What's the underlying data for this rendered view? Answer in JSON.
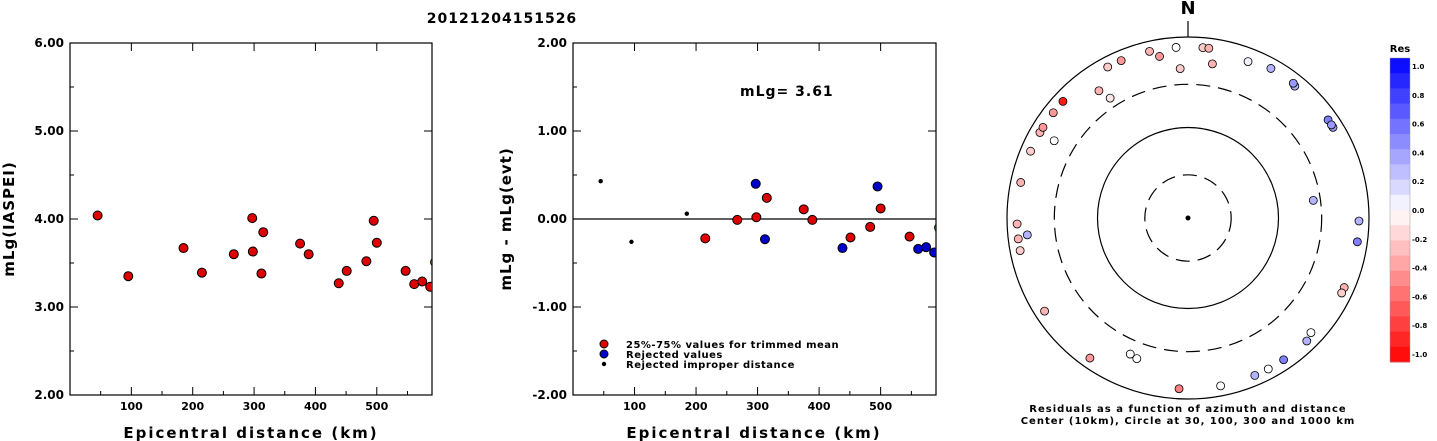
{
  "title": "20121204151526",
  "chart_data": [
    {
      "type": "scatter",
      "xlabel": "Epicentral distance (km)",
      "ylabel": "mLg(IASPEI)",
      "xlim": [
        0,
        590
      ],
      "ylim": [
        2.0,
        6.0
      ],
      "x_ticks": [
        "100",
        "200",
        "300",
        "400",
        "500"
      ],
      "y_ticks": [
        "2.00",
        "3.00",
        "4.00",
        "5.00",
        "6.00"
      ],
      "color": "#dd0000",
      "points": [
        [
          45,
          4.04
        ],
        [
          95,
          3.35
        ],
        [
          185,
          3.67
        ],
        [
          215,
          3.39
        ],
        [
          267,
          3.6
        ],
        [
          297,
          4.01
        ],
        [
          298,
          3.63
        ],
        [
          312,
          3.38
        ],
        [
          315,
          3.85
        ],
        [
          375,
          3.72
        ],
        [
          389,
          3.6
        ],
        [
          438,
          3.27
        ],
        [
          451,
          3.41
        ],
        [
          483,
          3.52
        ],
        [
          495,
          3.98
        ],
        [
          500,
          3.73
        ],
        [
          547,
          3.41
        ],
        [
          561,
          3.26
        ],
        [
          574,
          3.29
        ],
        [
          587,
          3.23
        ],
        [
          595,
          3.51
        ]
      ]
    },
    {
      "type": "scatter",
      "xlabel": "Epicentral distance (km)",
      "ylabel": "mLg - mLg(evt)",
      "xlim": [
        0,
        590
      ],
      "ylim": [
        -2.0,
        2.0
      ],
      "x_ticks": [
        "100",
        "200",
        "300",
        "400",
        "500"
      ],
      "y_ticks": [
        "-2.00",
        "-1.00",
        "0.00",
        "1.00",
        "2.00"
      ],
      "annotation": "mLg= 3.61",
      "reference_line": 0.0,
      "series": [
        {
          "name": "25%-75% values for trimmed mean",
          "color": "#dd0000",
          "points": [
            [
              215,
              -0.22
            ],
            [
              267,
              -0.01
            ],
            [
              298,
              0.02
            ],
            [
              315,
              0.24
            ],
            [
              375,
              0.11
            ],
            [
              389,
              -0.01
            ],
            [
              451,
              -0.21
            ],
            [
              483,
              -0.09
            ],
            [
              500,
              0.12
            ],
            [
              547,
              -0.2
            ],
            [
              595,
              -0.1
            ]
          ]
        },
        {
          "name": "Rejected values",
          "color": "#0000cc",
          "points": [
            [
              297,
              0.4
            ],
            [
              312,
              -0.23
            ],
            [
              438,
              -0.33
            ],
            [
              495,
              0.37
            ],
            [
              561,
              -0.34
            ],
            [
              574,
              -0.32
            ],
            [
              587,
              -0.38
            ]
          ]
        },
        {
          "name": "Rejected improper distance",
          "color": "#000000",
          "points": [
            [
              45,
              0.43
            ],
            [
              95,
              -0.26
            ],
            [
              185,
              0.06
            ]
          ]
        }
      ]
    },
    {
      "type": "polar_scatter",
      "north_label": "N",
      "caption_line1": "Residuals as a function of azimuth and distance",
      "caption_line2": "Center (10km), Circle at 30, 100, 300 and 1000 km",
      "rings_km": [
        30,
        100,
        300,
        1000
      ],
      "colorbar": {
        "title": "Res",
        "ticks": [
          "1.0",
          "0.8",
          "0.6",
          "0.4",
          "0.2",
          "0.0",
          "-0.2",
          "-0.4",
          "-0.6",
          "-0.8",
          "-1.0"
        ]
      },
      "stations": [
        {
          "az": 5,
          "dist": 1000,
          "res": -0.2
        },
        {
          "az": 7,
          "dist": 1000,
          "res": -0.3
        },
        {
          "az": -4,
          "dist": 1000,
          "res": 0.0
        },
        {
          "az": -13,
          "dist": 880,
          "res": -0.3
        },
        {
          "az": -10,
          "dist": 650,
          "res": -0.4
        },
        {
          "az": -3,
          "dist": 450,
          "res": -0.2
        },
        {
          "az": 9,
          "dist": 530,
          "res": -0.3
        },
        {
          "az": 21,
          "dist": 710,
          "res": 0.05
        },
        {
          "az": 29,
          "dist": 1000,
          "res": 0.3
        },
        {
          "az": 39,
          "dist": 750,
          "res": 0.3
        },
        {
          "az": 38,
          "dist": 1000,
          "res": 0.4
        },
        {
          "az": 55,
          "dist": 1000,
          "res": 0.5
        },
        {
          "az": 58,
          "dist": 1000,
          "res": 0.4
        },
        {
          "az": 57,
          "dist": 1000,
          "res": 0.4
        },
        {
          "az": 82,
          "dist": 250,
          "res": 0.3
        },
        {
          "az": 91,
          "dist": 1000,
          "res": 0.3
        },
        {
          "az": 98,
          "dist": 1000,
          "res": 0.5
        },
        {
          "az": 114,
          "dist": 1000,
          "res": -0.3
        },
        {
          "az": 116,
          "dist": 1000,
          "res": -0.2
        },
        {
          "az": 133,
          "dist": 720,
          "res": 0.0
        },
        {
          "az": 136,
          "dist": 1000,
          "res": 0.3
        },
        {
          "az": 146,
          "dist": 1000,
          "res": 0.5
        },
        {
          "az": 152,
          "dist": 1000,
          "res": 0.0
        },
        {
          "az": 157,
          "dist": 1000,
          "res": 0.3
        },
        {
          "az": 169,
          "dist": 1000,
          "res": 0.0
        },
        {
          "az": 183,
          "dist": 1000,
          "res": -0.5
        },
        {
          "az": 200,
          "dist": 450,
          "res": 0.0
        },
        {
          "az": 203,
          "dist": 430,
          "res": 0.0
        },
        {
          "az": 215,
          "dist": 1000,
          "res": -0.4
        },
        {
          "az": 237,
          "dist": 810,
          "res": -0.3
        },
        {
          "az": 259,
          "dist": 1000,
          "res": -0.2
        },
        {
          "az": 263,
          "dist": 1000,
          "res": -0.3
        },
        {
          "az": 264,
          "dist": 610,
          "res": 0.3
        },
        {
          "az": 268,
          "dist": 1000,
          "res": -0.3
        },
        {
          "az": 282,
          "dist": 1000,
          "res": -0.3
        },
        {
          "az": 293,
          "dist": 900,
          "res": -0.2
        },
        {
          "az": 300,
          "dist": 1000,
          "res": -0.3
        },
        {
          "az": 302,
          "dist": 1000,
          "res": -0.4
        },
        {
          "az": 308,
          "dist": 1000,
          "res": -0.4
        },
        {
          "az": 313,
          "dist": 1000,
          "res": -0.9
        },
        {
          "az": 325,
          "dist": 520,
          "res": -0.3
        },
        {
          "az": 327,
          "dist": 380,
          "res": -0.1
        },
        {
          "az": 332,
          "dist": 820,
          "res": -0.2
        },
        {
          "az": 337,
          "dist": 810,
          "res": -0.4
        },
        {
          "az": 300,
          "dist": 510,
          "res": 0.0
        }
      ]
    }
  ]
}
